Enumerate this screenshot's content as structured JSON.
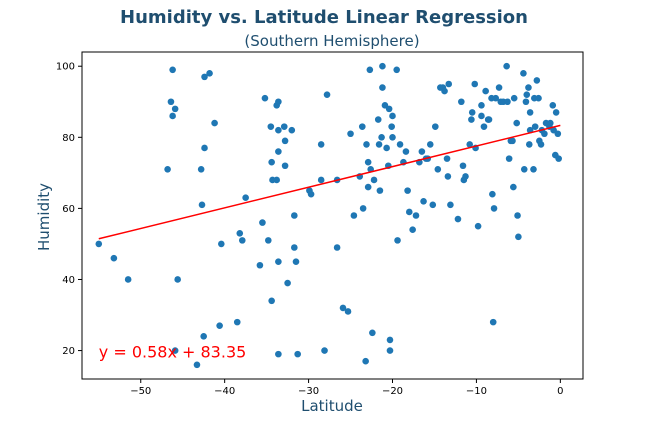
{
  "chart_data": {
    "type": "scatter",
    "title": "Humidity vs. Latitude Linear Regression",
    "subtitle": "(Southern Hemisphere)",
    "xlabel": "Latitude",
    "ylabel": "Humidity",
    "xlim": [
      -57,
      2.7
    ],
    "ylim": [
      12,
      104
    ],
    "xticks": [
      -50,
      -40,
      -30,
      -20,
      -10,
      0
    ],
    "yticks": [
      20,
      40,
      60,
      80,
      100
    ],
    "grid": false,
    "regression": {
      "slope": 0.58,
      "intercept": 83.35,
      "x_range": [
        -55,
        0
      ],
      "equation": "y = 0.58x + 83.35",
      "annotation_at": [
        -55,
        18
      ]
    },
    "colors": {
      "points": "#1f77b4",
      "line": "#ff0000",
      "title": "#1f4e6f",
      "annotation": "#ff0000"
    },
    "points": [
      [
        -55,
        50
      ],
      [
        -53.2,
        46
      ],
      [
        -51.5,
        40
      ],
      [
        -46.8,
        71
      ],
      [
        -46.4,
        90
      ],
      [
        -46.2,
        86
      ],
      [
        -46.2,
        99
      ],
      [
        -45.9,
        88
      ],
      [
        -45.6,
        40
      ],
      [
        -45.9,
        20
      ],
      [
        -43.3,
        16
      ],
      [
        -42.8,
        71
      ],
      [
        -42.7,
        61
      ],
      [
        -42.5,
        24
      ],
      [
        -42.4,
        77
      ],
      [
        -42.4,
        97
      ],
      [
        -41.8,
        98
      ],
      [
        -41.2,
        84
      ],
      [
        -40.6,
        27
      ],
      [
        -40.4,
        50
      ],
      [
        -38.5,
        28
      ],
      [
        -38.2,
        53
      ],
      [
        -37.9,
        51
      ],
      [
        -37.5,
        63
      ],
      [
        -35.8,
        44
      ],
      [
        -35.5,
        56
      ],
      [
        -35.2,
        91
      ],
      [
        -34.8,
        51
      ],
      [
        -34.5,
        83
      ],
      [
        -34.4,
        73
      ],
      [
        -34.4,
        34
      ],
      [
        -34.3,
        68
      ],
      [
        -33.8,
        89
      ],
      [
        -33.8,
        68
      ],
      [
        -33.6,
        90
      ],
      [
        -33.6,
        82
      ],
      [
        -33.6,
        76
      ],
      [
        -33.6,
        45
      ],
      [
        -33.6,
        19
      ],
      [
        -32.8,
        79
      ],
      [
        -32.9,
        83
      ],
      [
        -32.8,
        72
      ],
      [
        -32.5,
        39
      ],
      [
        -32,
        82
      ],
      [
        -31.7,
        58
      ],
      [
        -31.7,
        49
      ],
      [
        -31.5,
        45
      ],
      [
        -31.3,
        19
      ],
      [
        -29.9,
        65
      ],
      [
        -29.7,
        64
      ],
      [
        -28.5,
        78
      ],
      [
        -28.5,
        68
      ],
      [
        -28.1,
        20
      ],
      [
        -27.8,
        92
      ],
      [
        -26.6,
        68
      ],
      [
        -26.6,
        49
      ],
      [
        -25.9,
        32
      ],
      [
        -25.3,
        31
      ],
      [
        -25,
        81
      ],
      [
        -24.6,
        58
      ],
      [
        -23.9,
        69
      ],
      [
        -23.6,
        83
      ],
      [
        -23.5,
        60
      ],
      [
        -23.2,
        17
      ],
      [
        -23.1,
        78
      ],
      [
        -22.9,
        73
      ],
      [
        -22.9,
        66
      ],
      [
        -22.7,
        99
      ],
      [
        -22.6,
        71
      ],
      [
        -22.4,
        25
      ],
      [
        -22.2,
        68
      ],
      [
        -21.7,
        85
      ],
      [
        -21.6,
        78
      ],
      [
        -21.5,
        65
      ],
      [
        -21.3,
        80
      ],
      [
        -21.2,
        100
      ],
      [
        -21.2,
        94
      ],
      [
        -20.9,
        89
      ],
      [
        -20.7,
        77
      ],
      [
        -20.5,
        72
      ],
      [
        -20.4,
        88
      ],
      [
        -20.3,
        20
      ],
      [
        -20.3,
        23
      ],
      [
        -20.1,
        83
      ],
      [
        -20,
        80
      ],
      [
        -20,
        86
      ],
      [
        -19.5,
        99
      ],
      [
        -19.4,
        51
      ],
      [
        -19.1,
        78
      ],
      [
        -18.7,
        73
      ],
      [
        -18.4,
        76
      ],
      [
        -18.2,
        65
      ],
      [
        -18,
        59
      ],
      [
        -17.6,
        54
      ],
      [
        -17.2,
        58
      ],
      [
        -16.8,
        73
      ],
      [
        -16.5,
        76
      ],
      [
        -16.3,
        62
      ],
      [
        -16,
        74
      ],
      [
        -15.8,
        74
      ],
      [
        -15.5,
        78
      ],
      [
        -15.2,
        61
      ],
      [
        -14.9,
        83
      ],
      [
        -14.6,
        71
      ],
      [
        -14.3,
        94
      ],
      [
        -14,
        94
      ],
      [
        -13.8,
        93
      ],
      [
        -13.5,
        74
      ],
      [
        -13.4,
        69
      ],
      [
        -13.3,
        95
      ],
      [
        -13.1,
        61
      ],
      [
        -12.2,
        57
      ],
      [
        -11.8,
        90
      ],
      [
        -11.6,
        72
      ],
      [
        -11.5,
        68
      ],
      [
        -11.3,
        69
      ],
      [
        -10.8,
        78
      ],
      [
        -10.6,
        85
      ],
      [
        -10.5,
        87
      ],
      [
        -10.2,
        95
      ],
      [
        -10.1,
        77
      ],
      [
        -9.8,
        55
      ],
      [
        -9.4,
        89
      ],
      [
        -9.4,
        86
      ],
      [
        -9.1,
        83
      ],
      [
        -8.9,
        93
      ],
      [
        -8.6,
        85
      ],
      [
        -8.5,
        85
      ],
      [
        -8.2,
        91
      ],
      [
        -8.1,
        64
      ],
      [
        -8,
        28
      ],
      [
        -7.9,
        60
      ],
      [
        -7.7,
        91
      ],
      [
        -7.3,
        94
      ],
      [
        -7.1,
        90
      ],
      [
        -6.8,
        90
      ],
      [
        -6.4,
        100
      ],
      [
        -6.3,
        90
      ],
      [
        -6.1,
        74
      ],
      [
        -5.9,
        79
      ],
      [
        -5.7,
        79
      ],
      [
        -5.6,
        66
      ],
      [
        -5.5,
        91
      ],
      [
        -5.2,
        84
      ],
      [
        -5.1,
        58
      ],
      [
        -5,
        52
      ],
      [
        -4.4,
        98
      ],
      [
        -4.3,
        71
      ],
      [
        -4.1,
        90
      ],
      [
        -4,
        92
      ],
      [
        -3.8,
        94
      ],
      [
        -3.7,
        78
      ],
      [
        -3.6,
        82
      ],
      [
        -3.6,
        87
      ],
      [
        -3.2,
        71
      ],
      [
        -3.1,
        91
      ],
      [
        -3,
        83
      ],
      [
        -2.8,
        96
      ],
      [
        -2.6,
        91
      ],
      [
        -2.5,
        79
      ],
      [
        -2.3,
        78
      ],
      [
        -2.2,
        82
      ],
      [
        -1.9,
        81
      ],
      [
        -1.7,
        84
      ],
      [
        -1.3,
        83
      ],
      [
        -1.2,
        84
      ],
      [
        -0.9,
        89
      ],
      [
        -0.8,
        82
      ],
      [
        -0.6,
        75
      ],
      [
        -0.5,
        87
      ],
      [
        -0.3,
        81
      ],
      [
        -0.2,
        74
      ]
    ]
  }
}
